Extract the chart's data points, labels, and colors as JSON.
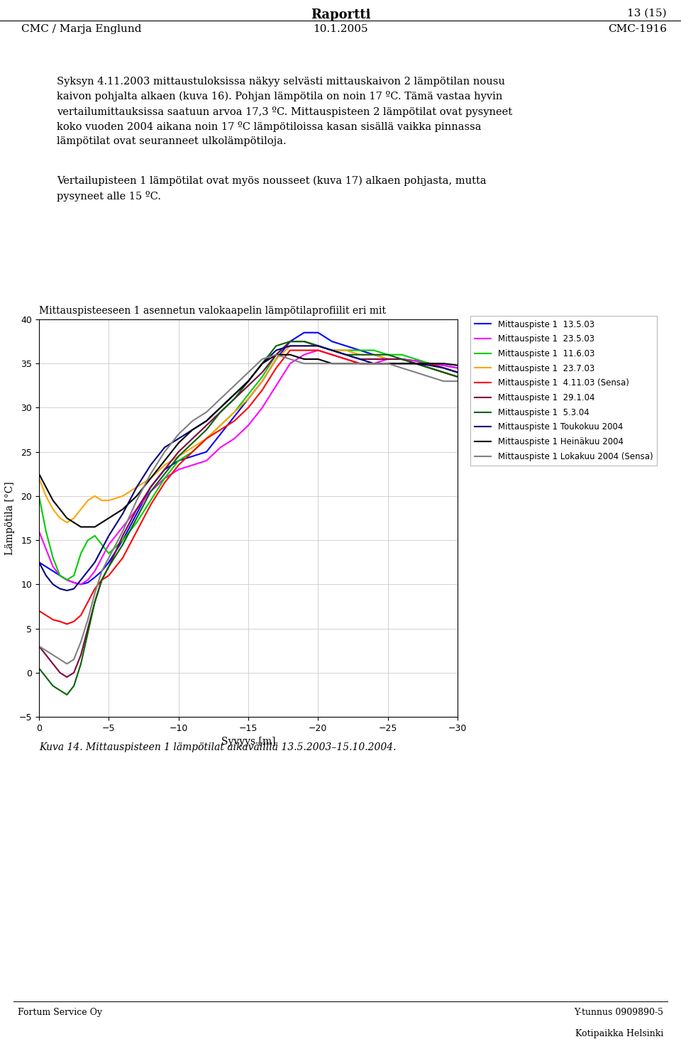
{
  "title": "Mittauspisteeseen 1 asennetun valokaapelin lämpötilaprofiilit eri mit",
  "xlabel": "Syvyys [m]",
  "ylabel": "Lämpötila [°C]",
  "xlim": [
    0,
    -30
  ],
  "ylim": [
    -5,
    40
  ],
  "xticks": [
    0,
    -5,
    -10,
    -15,
    -20,
    -25,
    -30
  ],
  "yticks": [
    -5,
    0,
    5,
    10,
    15,
    20,
    25,
    30,
    35,
    40
  ],
  "header_title": "Raportti",
  "header_right": "13 (15)",
  "header_left": "CMC / Marja Englund",
  "header_center": "10.1.2005",
  "header_code": "CMC-1916",
  "body_text": "Syksyn 4.11.2003 mittaustuloksissa näkyy selvästi mittauskaivon 2 lämpötilan nousu\nkaivon pohjalta alkaen (kuva 16). Pohjan lämpötila on noin 17 ºC. Tämä vastaa hyvin\nvertailumittauksissa saatuun arvoa 17,3 ºC. Mittauspisteen 2 lämpötilat ovat pysyneet\nkoko vuoden 2004 aikana noin 17 ºC lämpötiloissa kasan sisällä vaikka pinnassa\nlämpötilat ovat seuranneet ulkolämpötiloja.",
  "body_text2": "Vertailupisteen 1 lämpötilat ovat myös nousseet (kuva 17) alkaen pohjasta, mutta\npysyneet alle 15 ºC.",
  "caption": "Kuva 14. Mittauspisteen 1 lämpötilat aikavälillä 13.5.2003–15.10.2004.",
  "footer_left": "Fortum Service Oy",
  "footer_right1": "Y-tunnus 0909890-5",
  "footer_right2": "Kotipaikka Helsinki",
  "series": [
    {
      "label": "Mittauspiste 1  13.5.03",
      "color": "#0000FF",
      "x": [
        0,
        -0.5,
        -1,
        -1.5,
        -2,
        -2.5,
        -3,
        -3.5,
        -4,
        -4.5,
        -5,
        -6,
        -7,
        -8,
        -9,
        -10,
        -11,
        -12,
        -13,
        -14,
        -15,
        -16,
        -17,
        -18,
        -19,
        -20,
        -21,
        -22,
        -23,
        -24,
        -25,
        -26,
        -27,
        -28,
        -29,
        -30
      ],
      "y": [
        12.5,
        12.0,
        11.5,
        11.0,
        10.5,
        10.2,
        10.0,
        10.2,
        10.8,
        11.5,
        12.5,
        15.0,
        18.0,
        21.0,
        23.0,
        24.0,
        24.5,
        25.0,
        27.0,
        29.0,
        31.0,
        33.0,
        35.5,
        37.5,
        38.5,
        38.5,
        37.5,
        37.0,
        36.5,
        36.0,
        35.5,
        35.5,
        35.3,
        35.0,
        34.8,
        34.5
      ]
    },
    {
      "label": "Mittauspiste 1  23.5.03",
      "color": "#FF00FF",
      "x": [
        0,
        -0.5,
        -1,
        -1.5,
        -2,
        -2.5,
        -3,
        -3.5,
        -4,
        -4.5,
        -5,
        -6,
        -7,
        -8,
        -9,
        -10,
        -11,
        -12,
        -13,
        -14,
        -15,
        -16,
        -17,
        -18,
        -19,
        -20,
        -21,
        -22,
        -23,
        -24,
        -25,
        -26,
        -27,
        -28,
        -29,
        -30
      ],
      "y": [
        16.0,
        14.0,
        12.0,
        11.0,
        10.5,
        10.2,
        10.0,
        10.5,
        11.5,
        13.0,
        14.5,
        16.5,
        18.5,
        20.5,
        22.0,
        23.0,
        23.5,
        24.0,
        25.5,
        26.5,
        28.0,
        30.0,
        32.5,
        35.0,
        36.0,
        36.5,
        36.0,
        35.5,
        35.0,
        35.0,
        35.5,
        35.5,
        35.3,
        35.0,
        34.8,
        34.5
      ]
    },
    {
      "label": "Mittauspiste 1  11.6.03",
      "color": "#00CC00",
      "x": [
        0,
        -0.5,
        -1,
        -1.5,
        -2,
        -2.5,
        -3,
        -3.5,
        -4,
        -4.5,
        -5,
        -6,
        -7,
        -8,
        -9,
        -10,
        -11,
        -12,
        -13,
        -14,
        -15,
        -16,
        -17,
        -18,
        -19,
        -20,
        -21,
        -22,
        -23,
        -24,
        -25,
        -26,
        -27,
        -28,
        -29,
        -30
      ],
      "y": [
        20.0,
        16.0,
        13.0,
        11.0,
        10.5,
        11.0,
        13.5,
        15.0,
        15.5,
        14.5,
        13.5,
        15.0,
        17.0,
        19.5,
        22.0,
        24.0,
        25.0,
        26.5,
        28.0,
        29.5,
        31.5,
        33.5,
        36.0,
        37.5,
        37.5,
        37.0,
        36.5,
        36.5,
        36.5,
        36.5,
        36.0,
        36.0,
        35.5,
        35.0,
        34.5,
        34.0
      ]
    },
    {
      "label": "Mittauspiste 1  23.7.03",
      "color": "#FFA500",
      "x": [
        0,
        -0.5,
        -1,
        -1.5,
        -2,
        -2.5,
        -3,
        -3.5,
        -4,
        -4.5,
        -5,
        -6,
        -7,
        -8,
        -9,
        -10,
        -11,
        -12,
        -13,
        -14,
        -15,
        -16,
        -17,
        -18,
        -19,
        -20,
        -21,
        -22,
        -23,
        -24,
        -25,
        -26,
        -27,
        -28,
        -29,
        -30
      ],
      "y": [
        22.0,
        20.0,
        18.5,
        17.5,
        17.0,
        17.5,
        18.5,
        19.5,
        20.0,
        19.5,
        19.5,
        20.0,
        21.0,
        22.0,
        23.5,
        24.5,
        25.5,
        26.5,
        28.0,
        29.5,
        31.0,
        33.0,
        35.5,
        37.0,
        37.0,
        37.0,
        36.5,
        36.5,
        36.0,
        36.0,
        35.5,
        35.5,
        35.0,
        34.5,
        34.0,
        33.5
      ]
    },
    {
      "label": "Mittauspiste 1  4.11.03 (Sensa)",
      "color": "#FF0000",
      "x": [
        0,
        -0.5,
        -1,
        -1.5,
        -2,
        -2.5,
        -3,
        -3.5,
        -4,
        -4.5,
        -5,
        -6,
        -7,
        -8,
        -9,
        -10,
        -11,
        -12,
        -13,
        -14,
        -15,
        -16,
        -17,
        -18,
        -19,
        -20,
        -21,
        -22,
        -23,
        -24,
        -25,
        -26,
        -27,
        -28,
        -29,
        -30
      ],
      "y": [
        7.0,
        6.5,
        6.0,
        5.8,
        5.5,
        5.8,
        6.5,
        8.0,
        9.5,
        10.5,
        11.0,
        13.0,
        16.0,
        19.0,
        21.5,
        23.5,
        25.0,
        26.5,
        27.5,
        28.5,
        30.0,
        32.0,
        34.5,
        36.5,
        36.5,
        36.5,
        36.0,
        35.5,
        35.0,
        35.0,
        35.0,
        35.0,
        35.0,
        35.0,
        34.5,
        34.0
      ]
    },
    {
      "label": "Mittauspiste 1  29.1.04",
      "color": "#800040",
      "x": [
        0,
        -0.5,
        -1,
        -1.5,
        -2,
        -2.5,
        -3,
        -3.5,
        -4,
        -4.5,
        -5,
        -6,
        -7,
        -8,
        -9,
        -10,
        -11,
        -12,
        -13,
        -14,
        -15,
        -16,
        -17,
        -18,
        -19,
        -20,
        -21,
        -22,
        -23,
        -24,
        -25,
        -26,
        -27,
        -28,
        -29,
        -30
      ],
      "y": [
        3.0,
        2.0,
        1.0,
        0.0,
        -0.5,
        0.0,
        2.0,
        5.0,
        8.0,
        10.5,
        12.0,
        15.5,
        18.5,
        21.0,
        23.0,
        25.0,
        26.5,
        28.0,
        29.5,
        31.0,
        32.5,
        34.0,
        36.0,
        37.5,
        37.5,
        37.0,
        36.5,
        36.0,
        35.5,
        35.5,
        35.5,
        35.5,
        35.0,
        34.5,
        34.0,
        33.5
      ]
    },
    {
      "label": "Mittauspiste 1  5.3.04",
      "color": "#006400",
      "x": [
        0,
        -0.5,
        -1,
        -1.5,
        -2,
        -2.5,
        -3,
        -3.5,
        -4,
        -4.5,
        -5,
        -6,
        -7,
        -8,
        -9,
        -10,
        -11,
        -12,
        -13,
        -14,
        -15,
        -16,
        -17,
        -18,
        -19,
        -20,
        -21,
        -22,
        -23,
        -24,
        -25,
        -26,
        -27,
        -28,
        -29,
        -30
      ],
      "y": [
        0.5,
        -0.5,
        -1.5,
        -2.0,
        -2.5,
        -1.5,
        1.0,
        4.5,
        8.0,
        10.5,
        12.0,
        14.5,
        17.5,
        20.5,
        22.5,
        24.5,
        26.0,
        27.5,
        29.5,
        31.0,
        33.0,
        35.0,
        37.0,
        37.5,
        37.5,
        37.0,
        36.5,
        36.0,
        36.0,
        36.0,
        36.0,
        35.5,
        35.0,
        34.5,
        34.0,
        33.5
      ]
    },
    {
      "label": "Mittauspiste 1 Toukokuu 2004",
      "color": "#000080",
      "x": [
        0,
        -0.5,
        -1,
        -1.5,
        -2,
        -2.5,
        -3,
        -3.5,
        -4,
        -4.5,
        -5,
        -6,
        -7,
        -8,
        -9,
        -10,
        -11,
        -12,
        -13,
        -14,
        -15,
        -16,
        -17,
        -18,
        -19,
        -20,
        -21,
        -22,
        -23,
        -24,
        -25,
        -26,
        -27,
        -28,
        -29,
        -30
      ],
      "y": [
        12.5,
        11.0,
        10.0,
        9.5,
        9.3,
        9.5,
        10.5,
        11.5,
        12.5,
        14.0,
        15.5,
        18.0,
        21.0,
        23.5,
        25.5,
        26.5,
        27.5,
        28.5,
        30.0,
        31.5,
        33.0,
        35.0,
        36.5,
        37.0,
        37.0,
        37.0,
        36.5,
        36.0,
        35.5,
        35.0,
        35.0,
        35.0,
        35.0,
        34.8,
        34.5,
        34.0
      ]
    },
    {
      "label": "Mittauspiste 1 Heinäkuu 2004",
      "color": "#000000",
      "x": [
        0,
        -0.5,
        -1,
        -1.5,
        -2,
        -2.5,
        -3,
        -3.5,
        -4,
        -4.5,
        -5,
        -6,
        -7,
        -8,
        -9,
        -10,
        -11,
        -12,
        -13,
        -14,
        -15,
        -16,
        -17,
        -18,
        -19,
        -20,
        -21,
        -22,
        -23,
        -24,
        -25,
        -26,
        -27,
        -28,
        -29,
        -30
      ],
      "y": [
        22.5,
        21.0,
        19.5,
        18.5,
        17.5,
        17.0,
        16.5,
        16.5,
        16.5,
        17.0,
        17.5,
        18.5,
        20.0,
        22.0,
        24.0,
        26.0,
        27.5,
        28.5,
        30.0,
        31.5,
        33.0,
        35.0,
        36.0,
        36.0,
        35.5,
        35.5,
        35.0,
        35.0,
        35.0,
        35.0,
        35.0,
        35.0,
        35.0,
        35.0,
        35.0,
        34.8
      ]
    },
    {
      "label": "Mittauspiste 1 Lokakuu 2004 (Sensa)",
      "color": "#808080",
      "x": [
        0,
        -0.5,
        -1,
        -1.5,
        -2,
        -2.5,
        -3,
        -3.5,
        -4,
        -4.5,
        -5,
        -6,
        -7,
        -8,
        -9,
        -10,
        -11,
        -12,
        -13,
        -14,
        -15,
        -16,
        -17,
        -18,
        -19,
        -20,
        -21,
        -22,
        -23,
        -24,
        -25,
        -26,
        -27,
        -28,
        -29,
        -30
      ],
      "y": [
        3.0,
        2.5,
        2.0,
        1.5,
        1.0,
        1.5,
        3.5,
        6.0,
        9.0,
        11.5,
        13.0,
        16.0,
        19.5,
        22.5,
        25.0,
        27.0,
        28.5,
        29.5,
        31.0,
        32.5,
        34.0,
        35.5,
        36.0,
        35.5,
        35.0,
        35.0,
        35.0,
        35.0,
        35.0,
        35.0,
        35.0,
        34.5,
        34.0,
        33.5,
        33.0,
        33.0
      ]
    }
  ]
}
